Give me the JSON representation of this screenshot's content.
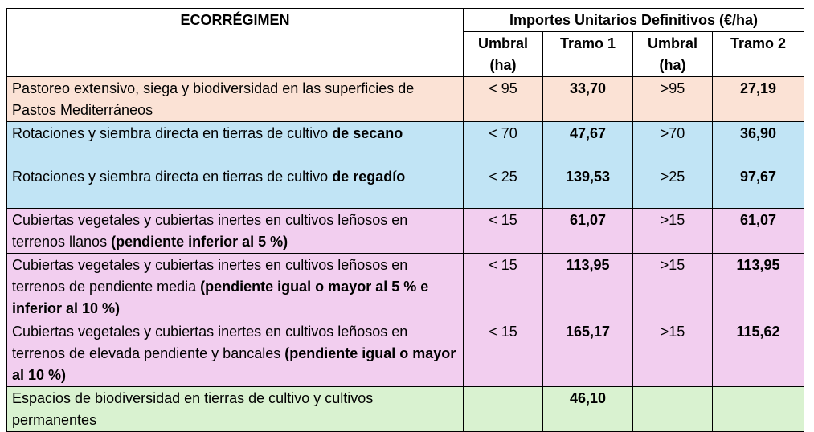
{
  "header": {
    "regime": "ECORRÉGIMEN",
    "group": "Importes Unitarios Definitivos (€/ha)",
    "umbral1": "Umbral (ha)",
    "tramo1": "Tramo 1",
    "umbral2": "Umbral (ha)",
    "tramo2": "Tramo 2"
  },
  "rows": [
    {
      "desc_plain": "Pastoreo extensivo, siega y biodiversidad en las superficies de Pastos Mediterráneos",
      "desc_bold": "",
      "umbral1": "< 95",
      "tramo1": "33,70",
      "umbral2": ">95",
      "tramo2": "27,19",
      "color": "#fbe2d5"
    },
    {
      "desc_plain": "Rotaciones y siembra directa en tierras de cultivo ",
      "desc_bold": "de secano",
      "umbral1": "< 70",
      "tramo1": "47,67",
      "umbral2": ">70",
      "tramo2": "36,90",
      "color": "#c1e4f5"
    },
    {
      "desc_plain": "Rotaciones y siembra directa en tierras de cultivo ",
      "desc_bold": "de regadío",
      "umbral1": "< 25",
      "tramo1": "139,53",
      "umbral2": ">25",
      "tramo2": "97,67",
      "color": "#c1e4f5"
    },
    {
      "desc_plain": "Cubiertas vegetales y cubiertas inertes en cultivos leñosos en terrenos llanos ",
      "desc_bold": "(pendiente inferior al 5 %)",
      "umbral1": "< 15",
      "tramo1": "61,07",
      "umbral2": ">15",
      "tramo2": "61,07",
      "color": "#f2ceef"
    },
    {
      "desc_plain": "Cubiertas vegetales y cubiertas inertes en cultivos leñosos en terrenos de pendiente media ",
      "desc_bold": "(pendiente igual o mayor al 5 % e inferior al 10 %)",
      "umbral1": "< 15",
      "tramo1": "113,95",
      "umbral2": ">15",
      "tramo2": "113,95",
      "color": "#f2ceef"
    },
    {
      "desc_plain": "Cubiertas vegetales y cubiertas inertes en cultivos leñosos en terrenos de elevada pendiente y bancales ",
      "desc_bold": "(pendiente igual o mayor al 10 %)",
      "umbral1": "< 15",
      "tramo1": "165,17",
      "umbral2": ">15",
      "tramo2": "115,62",
      "color": "#f2ceef"
    },
    {
      "desc_plain": "Espacios de biodiversidad en tierras de cultivo y cultivos permanentes",
      "desc_bold": "",
      "umbral1": "",
      "tramo1": "46,10",
      "umbral2": "",
      "tramo2": "",
      "color": "#d9f2d0"
    }
  ]
}
